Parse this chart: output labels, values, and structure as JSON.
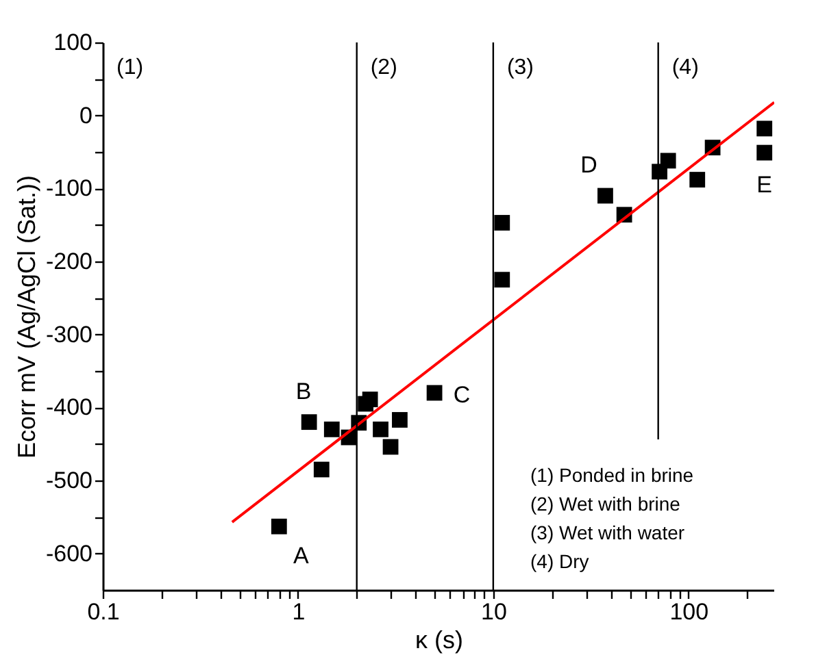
{
  "chart_data": {
    "type": "scatter",
    "xlabel": "κ (s)",
    "ylabel": "Ecorr mV (Ag/AgCl (Sat.))",
    "log": "x",
    "grid": false,
    "marker": "square",
    "xlim": [
      0.1,
      275
    ],
    "ylim": [
      -650,
      100
    ],
    "xticks": [
      0.1,
      {
        "value": 0.2,
        "label": null
      },
      {
        "value": 0.3,
        "label": null
      },
      {
        "value": 0.4,
        "label": null
      },
      {
        "value": 0.5,
        "label": null
      },
      {
        "value": 0.6,
        "label": null
      },
      {
        "value": 0.7,
        "label": null
      },
      {
        "value": 0.8,
        "label": null
      },
      {
        "value": 0.9,
        "label": null
      },
      1,
      {
        "value": 2,
        "label": null
      },
      {
        "value": 3,
        "label": null
      },
      {
        "value": 4,
        "label": null
      },
      {
        "value": 5,
        "label": null
      },
      {
        "value": 6,
        "label": null
      },
      {
        "value": 7,
        "label": null
      },
      {
        "value": 8,
        "label": null
      },
      {
        "value": 9,
        "label": null
      },
      10,
      {
        "value": 20,
        "label": null
      },
      {
        "value": 30,
        "label": null
      },
      {
        "value": 40,
        "label": null
      },
      {
        "value": 50,
        "label": null
      },
      {
        "value": 60,
        "label": null
      },
      {
        "value": 70,
        "label": null
      },
      {
        "value": 80,
        "label": null
      },
      {
        "value": 90,
        "label": null
      },
      100,
      {
        "value": 200,
        "label": null
      }
    ],
    "yticks": [
      -600,
      {
        "value": -550,
        "label": null
      },
      -500,
      {
        "value": -450,
        "label": null
      },
      -400,
      {
        "value": -350,
        "label": null
      },
      -300,
      {
        "value": -250,
        "label": null
      },
      -200,
      {
        "value": -150,
        "label": null
      },
      -100,
      {
        "value": -50,
        "label": null
      },
      0,
      {
        "value": 50,
        "label": null
      },
      100
    ],
    "series": [
      {
        "color": "#000000",
        "x": [
          0.8,
          1.14,
          1.32,
          1.49,
          1.82,
          2.05,
          2.22,
          2.34,
          2.65,
          2.98,
          3.32,
          5.0,
          11.1,
          11.1,
          37.5,
          46.9,
          71.1,
          78.7,
          111,
          133,
          245,
          245
        ],
        "values": [
          -563,
          -420,
          -485,
          -430,
          -441,
          -421,
          -395,
          -389,
          -430,
          -454,
          -417,
          -380,
          -147,
          -225,
          -110,
          -136,
          -77,
          -62,
          -88,
          -44,
          -18,
          -51
        ]
      },
      {
        "type": "line",
        "color": "#ff0000",
        "marker": "none",
        "line_style": "solid",
        "x": [
          0.46,
          275
        ],
        "values": [
          -557,
          18
        ]
      }
    ],
    "ref_lines": [
      {
        "axis": "x",
        "value": 2,
        "color": "#000000"
      },
      {
        "axis": "x",
        "value": 10,
        "color": "#000000"
      },
      {
        "axis": "x",
        "value": 70,
        "color": "#000000"
      }
    ],
    "annotations": [
      "(1)",
      "(2)",
      "(3)",
      "(4)",
      {
        "text": "A",
        "x": 0.8,
        "y": -563
      },
      {
        "text": "B",
        "x": 1.14,
        "y": -420
      },
      {
        "text": "C",
        "x": 5.0,
        "y": -380
      },
      {
        "text": "D",
        "x": 37.5,
        "y": -110
      },
      {
        "text": "E",
        "x": 245,
        "y": -51
      },
      "(1) Ponded in brine",
      "(2) Wet with brine",
      "(3) Wet with water",
      "(4) Dry"
    ]
  }
}
